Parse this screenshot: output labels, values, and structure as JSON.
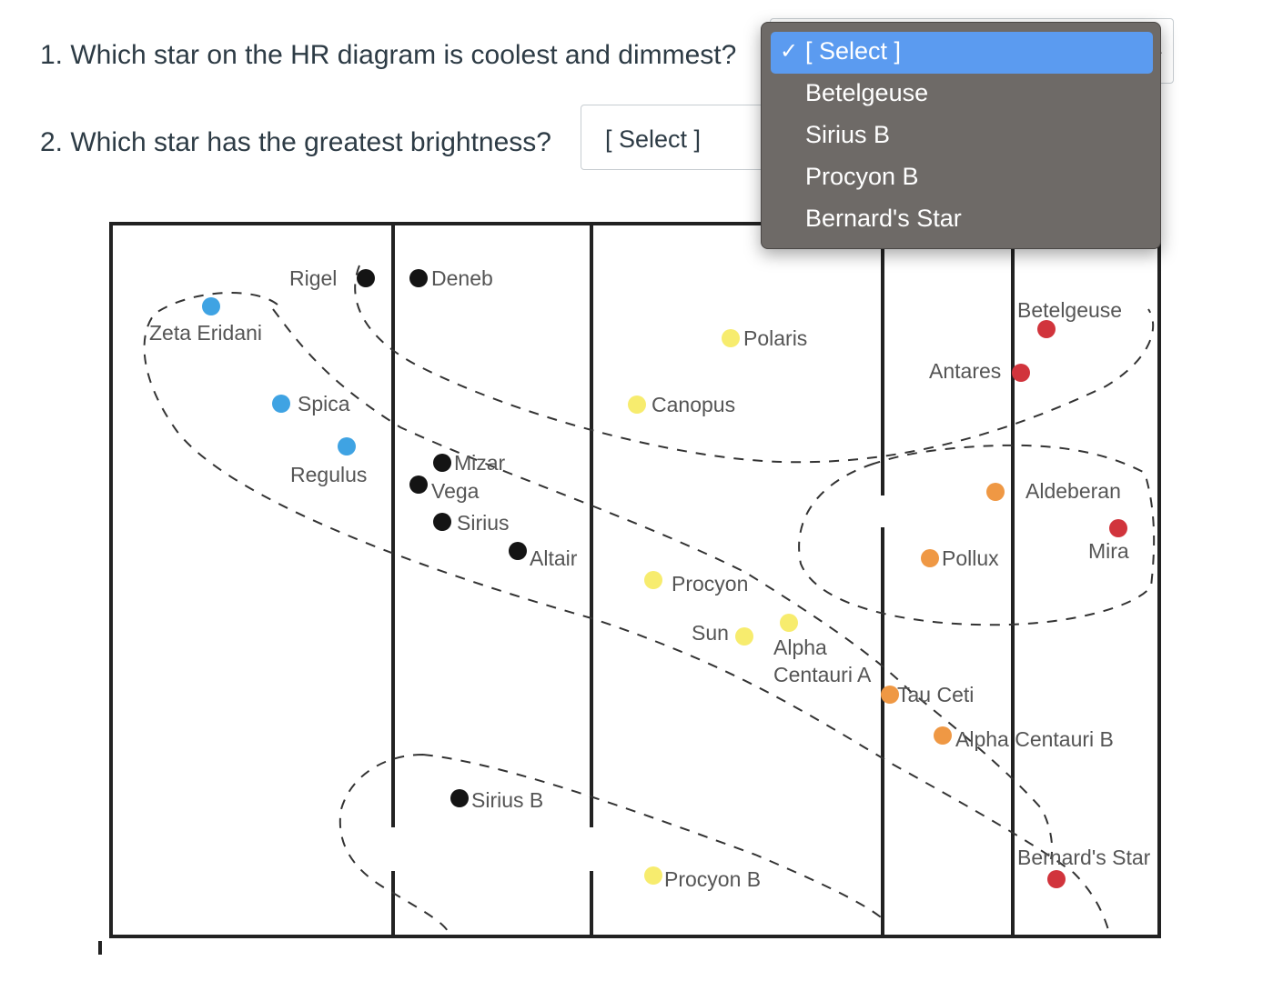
{
  "questions": {
    "q1": "1. Which star on the HR diagram is coolest and dimmest?",
    "q2": "2. Which star has the greatest brightness?"
  },
  "select1": {
    "options": [
      "[ Select ]",
      "Betelgeuse",
      "Sirius B",
      "Procyon B",
      "Bernard's Star"
    ],
    "selected_index": 0,
    "check_mark": "✓"
  },
  "select2": {
    "value": "[ Select ]"
  },
  "colors": {
    "blue": "#3fa3e3",
    "yellow": "#f7ec6e",
    "orange": "#ef9844",
    "red": "#d1343c",
    "black": "#141414",
    "dropdown_bg": "#6e6a67",
    "highlight": "#5b9bf0"
  },
  "stars": [
    {
      "name": "Rigel",
      "color": "black"
    },
    {
      "name": "Deneb",
      "color": "black"
    },
    {
      "name": "Zeta Eridani",
      "color": "blue"
    },
    {
      "name": "Spica",
      "color": "blue"
    },
    {
      "name": "Regulus",
      "color": "blue"
    },
    {
      "name": "Mizar",
      "color": "black"
    },
    {
      "name": "Vega",
      "color": "black"
    },
    {
      "name": "Sirius",
      "color": "black"
    },
    {
      "name": "Altair",
      "color": "black"
    },
    {
      "name": "Polaris",
      "color": "yellow"
    },
    {
      "name": "Canopus",
      "color": "yellow"
    },
    {
      "name": "Procyon",
      "color": "yellow"
    },
    {
      "name": "Sun",
      "color": "yellow"
    },
    {
      "name": "Alpha Centauri A",
      "color": "yellow"
    },
    {
      "name": "Betelgeuse",
      "color": "red"
    },
    {
      "name": "Antares",
      "color": "red"
    },
    {
      "name": "Aldeberan",
      "color": "orange"
    },
    {
      "name": "Mira",
      "color": "red"
    },
    {
      "name": "Pollux",
      "color": "orange"
    },
    {
      "name": "Tau Ceti",
      "color": "orange"
    },
    {
      "name": "Alpha Centauri B",
      "color": "orange"
    },
    {
      "name": "Sirius B",
      "color": "black"
    },
    {
      "name": "Procyon B",
      "color": "yellow"
    },
    {
      "name": "Bernard's Star",
      "color": "red"
    }
  ]
}
